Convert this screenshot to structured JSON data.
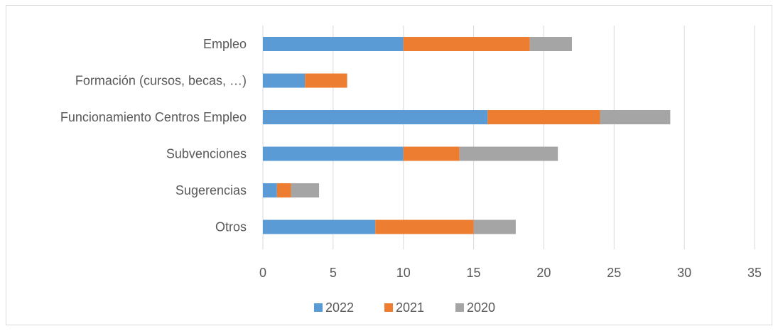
{
  "chart_data": {
    "type": "bar",
    "orientation": "horizontal",
    "stacked": true,
    "categories": [
      "Empleo",
      "Formación (cursos, becas, …)",
      "Funcionamiento Centros Empleo",
      "Subvenciones",
      "Sugerencias",
      "Otros"
    ],
    "series": [
      {
        "name": "2022",
        "color": "#5b9bd5",
        "values": [
          10,
          3,
          16,
          10,
          1,
          8
        ]
      },
      {
        "name": "2021",
        "color": "#ed7d31",
        "values": [
          9,
          3,
          8,
          4,
          1,
          7
        ]
      },
      {
        "name": "2020",
        "color": "#a5a5a5",
        "values": [
          3,
          0,
          5,
          7,
          2,
          3
        ]
      }
    ],
    "xlim": [
      0,
      35
    ],
    "xticks": [
      0,
      5,
      10,
      15,
      20,
      25,
      30,
      35
    ],
    "tick_labels": [
      "0",
      "5",
      "10",
      "15",
      "20",
      "25",
      "30",
      "35"
    ],
    "grid": true,
    "legend_position": "bottom"
  }
}
